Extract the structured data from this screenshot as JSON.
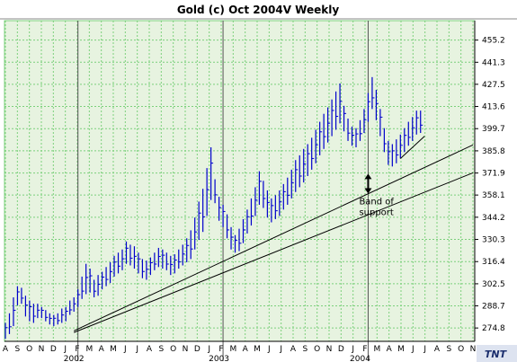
{
  "chart_data": {
    "type": "ohlc-bar",
    "title": "Gold (c) Oct 2004V Weekly",
    "ylim": [
      267.0,
      466.8
    ],
    "yticks": [
      274.8,
      288.7,
      302.5,
      316.4,
      330.3,
      344.2,
      358.1,
      371.9,
      385.8,
      399.7,
      413.6,
      427.5,
      441.3,
      455.2
    ],
    "xlim": [
      0,
      116
    ],
    "month_labels": [
      "A",
      "S",
      "O",
      "N",
      "D",
      "J",
      "F",
      "M",
      "A",
      "M",
      "J",
      "J",
      "A",
      "S",
      "O",
      "N",
      "D",
      "J",
      "F",
      "M",
      "A",
      "M",
      "J",
      "J",
      "A",
      "S",
      "O",
      "N",
      "D",
      "J",
      "F",
      "M",
      "A",
      "M",
      "J",
      "J",
      "A",
      "S",
      "O",
      "N"
    ],
    "year_labels": [
      {
        "index": 17,
        "label": "2002"
      },
      {
        "index": 53,
        "label": "2003"
      },
      {
        "index": 88,
        "label": "2004"
      }
    ],
    "year_divider_indices": [
      18,
      54,
      90
    ],
    "grid": true,
    "bar_color": "#0000cc",
    "background_color": "#e7f3e0",
    "grid_color": "#7cd07c",
    "series": [
      {
        "values": [
          [
            268,
            278
          ],
          [
            271,
            284
          ],
          [
            276,
            294
          ],
          [
            289,
            301
          ],
          [
            290,
            300
          ],
          [
            282,
            295
          ],
          [
            279,
            292
          ],
          [
            278,
            290
          ],
          [
            281,
            290
          ],
          [
            281,
            288
          ],
          [
            279,
            286
          ],
          [
            277,
            284
          ],
          [
            276,
            283
          ],
          [
            277,
            284
          ],
          [
            278,
            287
          ],
          [
            279,
            288
          ],
          [
            283,
            292
          ],
          [
            285,
            294
          ],
          [
            288,
            299
          ],
          [
            293,
            307
          ],
          [
            296,
            315
          ],
          [
            297,
            312
          ],
          [
            294,
            305
          ],
          [
            295,
            308
          ],
          [
            299,
            310
          ],
          [
            301,
            313
          ],
          [
            303,
            316
          ],
          [
            307,
            320
          ],
          [
            309,
            322
          ],
          [
            311,
            324
          ],
          [
            315,
            329
          ],
          [
            314,
            327
          ],
          [
            312,
            326
          ],
          [
            309,
            322
          ],
          [
            306,
            318
          ],
          [
            305,
            317
          ],
          [
            308,
            319
          ],
          [
            311,
            322
          ],
          [
            313,
            325
          ],
          [
            312,
            324
          ],
          [
            311,
            322
          ],
          [
            308,
            320
          ],
          [
            309,
            321
          ],
          [
            312,
            324
          ],
          [
            314,
            327
          ],
          [
            316,
            331
          ],
          [
            318,
            336
          ],
          [
            324,
            344
          ],
          [
            330,
            354
          ],
          [
            335,
            362
          ],
          [
            345,
            375
          ],
          [
            355,
            388
          ],
          [
            353,
            368
          ],
          [
            342,
            357
          ],
          [
            338,
            352
          ],
          [
            331,
            346
          ],
          [
            324,
            338
          ],
          [
            322,
            333
          ],
          [
            323,
            337
          ],
          [
            328,
            343
          ],
          [
            334,
            349
          ],
          [
            339,
            356
          ],
          [
            345,
            363
          ],
          [
            352,
            373
          ],
          [
            350,
            367
          ],
          [
            344,
            361
          ],
          [
            341,
            356
          ],
          [
            343,
            358
          ],
          [
            345,
            361
          ],
          [
            349,
            365
          ],
          [
            352,
            369
          ],
          [
            356,
            374
          ],
          [
            360,
            380
          ],
          [
            363,
            383
          ],
          [
            366,
            387
          ],
          [
            370,
            390
          ],
          [
            374,
            394
          ],
          [
            378,
            399
          ],
          [
            383,
            404
          ],
          [
            387,
            409
          ],
          [
            391,
            413
          ],
          [
            395,
            418
          ],
          [
            399,
            423
          ],
          [
            403,
            428
          ],
          [
            398,
            414
          ],
          [
            392,
            406
          ],
          [
            389,
            401
          ],
          [
            388,
            400
          ],
          [
            392,
            405
          ],
          [
            397,
            412
          ],
          [
            404,
            422
          ],
          [
            412,
            432
          ],
          [
            405,
            424
          ],
          [
            395,
            412
          ],
          [
            385,
            400
          ],
          [
            377,
            392
          ],
          [
            376,
            390
          ],
          [
            378,
            393
          ],
          [
            381,
            396
          ],
          [
            385,
            400
          ],
          [
            389,
            404
          ],
          [
            392,
            407
          ],
          [
            396,
            411
          ],
          [
            397,
            411
          ]
        ]
      }
    ],
    "trendlines": [
      {
        "from": [
          17,
          273
        ],
        "to": [
          116,
          389.5
        ]
      },
      {
        "from": [
          17,
          272
        ],
        "to": [
          116,
          372
        ]
      },
      {
        "from": [
          98,
          381
        ],
        "to": [
          104,
          395
        ]
      }
    ],
    "annotations": [
      {
        "text_lines": [
          "Band of",
          "support"
        ],
        "arrow_x": 90,
        "arrow_from": 371.5,
        "arrow_to": 359
      }
    ],
    "logo_text": "TNT"
  }
}
